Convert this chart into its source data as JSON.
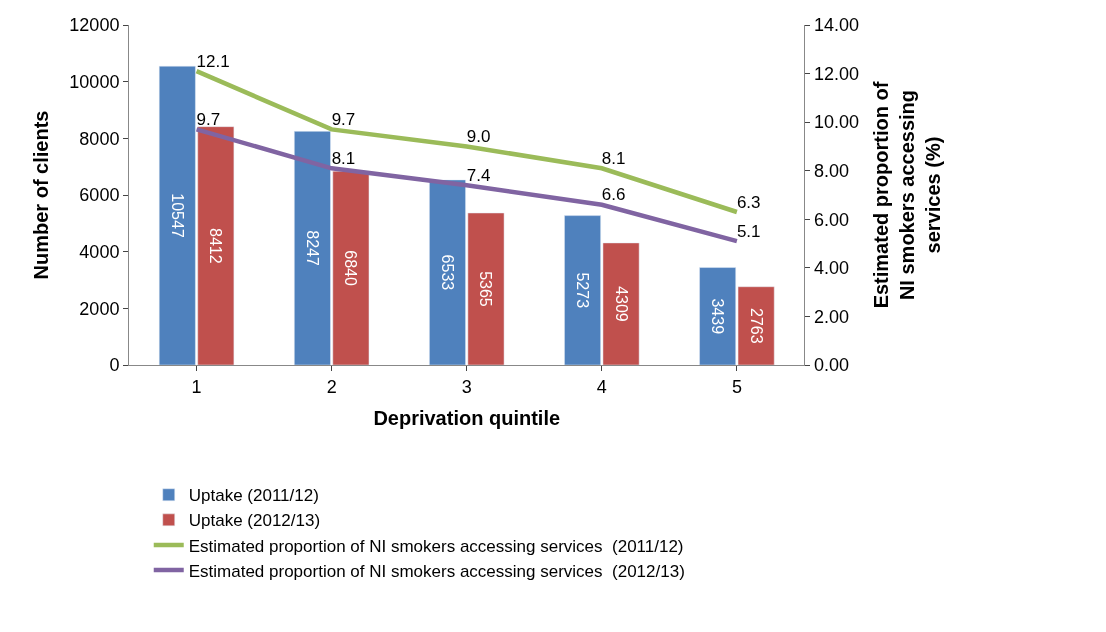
{
  "chart_data": {
    "type": "bar",
    "xlabel": "Deprivation quintile",
    "ylabel": "Number of clients",
    "y2label": "Estimated proportion of NI smokers accessing services (%)",
    "categories": [
      "1",
      "2",
      "3",
      "4",
      "5"
    ],
    "series": [
      {
        "name": "Uptake (2011/12)",
        "color": "#4f81bd",
        "values": [
          10547,
          8247,
          6533,
          5273,
          3439
        ]
      },
      {
        "name": "Uptake (2012/13)",
        "color": "#c0504d",
        "values": [
          8412,
          6840,
          5365,
          4309,
          2763
        ]
      },
      {
        "name": "Estimated proportion of NI smokers accessing services  (2011/12)",
        "type": "line",
        "axis": "y2",
        "color": "#9bbb59",
        "values": [
          12.1,
          9.7,
          9.0,
          8.1,
          6.3
        ],
        "value_labels": [
          "12.1",
          "9.7",
          "9.0",
          "8.1",
          "6.3"
        ]
      },
      {
        "name": "Estimated proportion of NI smokers accessing services  (2012/13)",
        "type": "line",
        "axis": "y2",
        "color": "#8064a2",
        "values": [
          9.7,
          8.1,
          7.4,
          6.6,
          5.1
        ],
        "value_labels": [
          "9.7",
          "8.1",
          "7.4",
          "6.6",
          "5.1"
        ]
      }
    ],
    "ylim": [
      0,
      12000
    ],
    "yticks": [
      0,
      2000,
      4000,
      6000,
      8000,
      10000,
      12000
    ],
    "y2lim": [
      0,
      14
    ],
    "y2ticks": [
      {
        "value": 0,
        "label": "0.00"
      },
      {
        "value": 2,
        "label": "2.00"
      },
      {
        "value": 4,
        "label": "4.00"
      },
      {
        "value": 6,
        "label": "6.00"
      },
      {
        "value": 8,
        "label": "8.00"
      },
      {
        "value": 10,
        "label": "10.00"
      },
      {
        "value": 12,
        "label": "12.00"
      },
      {
        "value": 14,
        "label": "14.00"
      }
    ],
    "data_labels": true,
    "legend": "bottom",
    "marker": "none",
    "line_style": "solid"
  }
}
